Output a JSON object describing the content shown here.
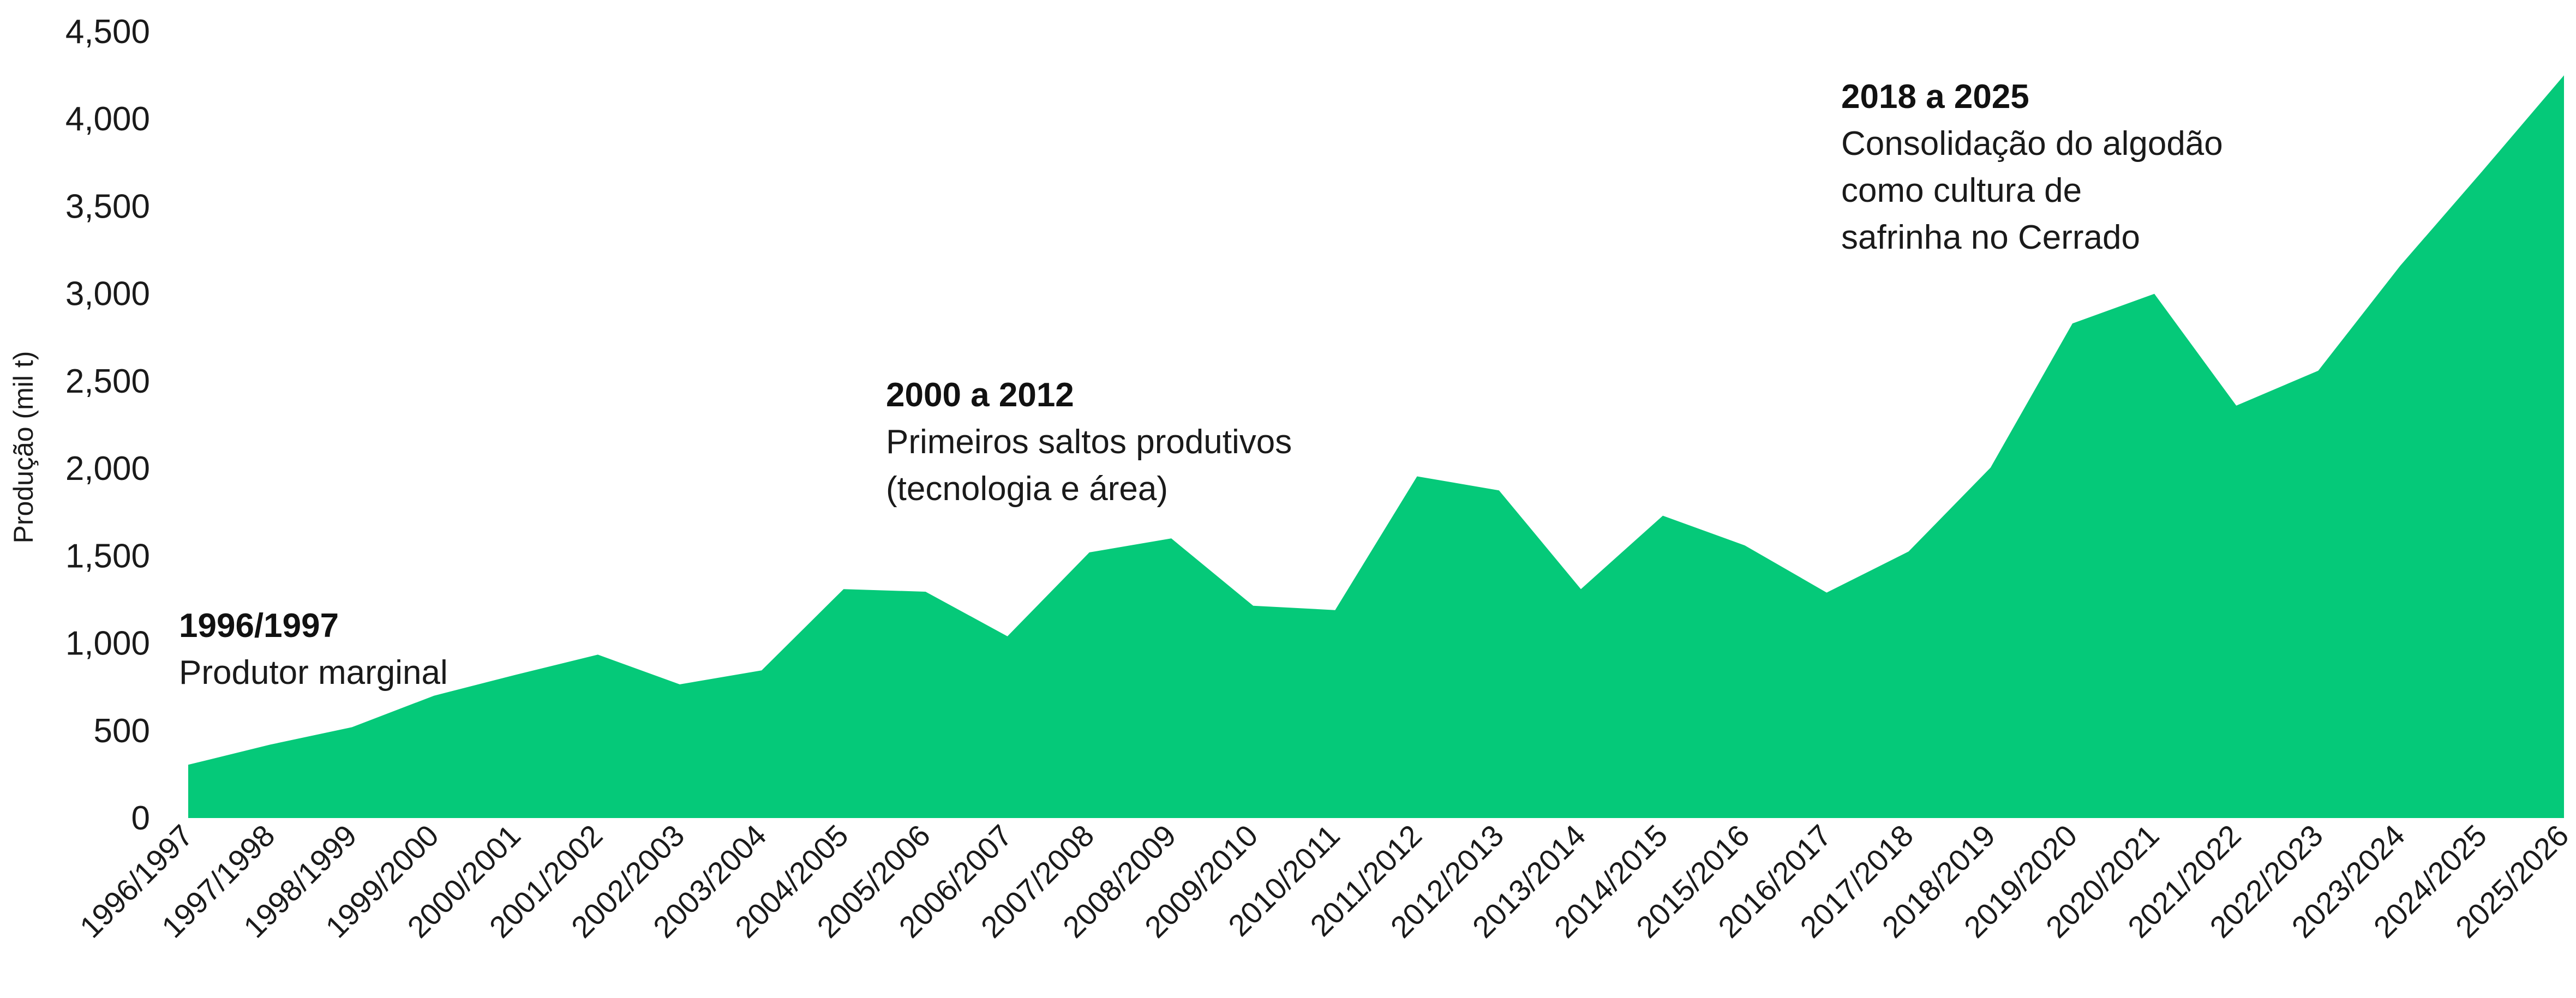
{
  "chart_data": {
    "type": "area",
    "ylabel": "Produção (mil t)",
    "xlabel": "",
    "title": "",
    "ylim": [
      0,
      4500
    ],
    "yticks": [
      "0",
      "500",
      "1,000",
      "1,500",
      "2,000",
      "2,500",
      "3,000",
      "3,500",
      "4,000",
      "4,500"
    ],
    "ytick_values": [
      0,
      500,
      1000,
      1500,
      2000,
      2500,
      3000,
      3500,
      4000,
      4500
    ],
    "grid": false,
    "categories": [
      "1996/1997",
      "1997/1998",
      "1998/1999",
      "1999/2000",
      "2000/2001",
      "2001/2002",
      "2002/2003",
      "2003/2004",
      "2004/2005",
      "2005/2006",
      "2006/2007",
      "2007/2008",
      "2008/2009",
      "2009/2010",
      "2010/2011",
      "2011/2012",
      "2012/2013",
      "2013/2014",
      "2014/2015",
      "2015/2016",
      "2016/2017",
      "2017/2018",
      "2018/2019",
      "2019/2020",
      "2020/2021",
      "2021/2022",
      "2022/2023",
      "2023/2024",
      "2024/2025",
      "2025/2026"
    ],
    "series": [
      {
        "values": [
          305,
          420,
          520,
          700,
          820,
          935,
          765,
          845,
          1310,
          1295,
          1040,
          1520,
          1600,
          1215,
          1190,
          1955,
          1875,
          1310,
          1730,
          1560,
          1290,
          1525,
          2005,
          2830,
          3000,
          2360,
          2560,
          3160,
          3700,
          4250
        ],
        "color": "#05c979"
      }
    ],
    "annotations": [
      {
        "title": "1996/1997",
        "lines": [
          "Produtor marginal"
        ]
      },
      {
        "title": "2000 a 2012",
        "lines": [
          "Primeiros saltos  produtivos",
          "(tecnologia e área)"
        ]
      },
      {
        "title": "2018 a 2025",
        "lines": [
          "Consolidação do algodão",
          "como cultura de",
          "safrinha no Cerrado"
        ]
      }
    ]
  }
}
